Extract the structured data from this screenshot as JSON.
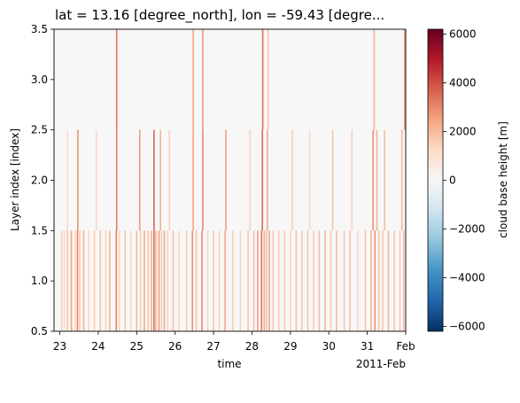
{
  "chart_data": {
    "type": "heatmap",
    "title": "lat = 13.16 [degree_north], lon = -59.43 [degre...",
    "xlabel": "time",
    "x_offset_label": "2011-Feb",
    "ylabel": "Layer index [index]",
    "colorbar_label": "cloud base height [m]",
    "colormap": "RdBu_r",
    "clim": [
      -6200,
      6200
    ],
    "xlim": [
      22.85,
      32.0
    ],
    "ylim": [
      0.5,
      3.5
    ],
    "x_ticks": [
      {
        "value": 23,
        "label": "23"
      },
      {
        "value": 24,
        "label": "24"
      },
      {
        "value": 25,
        "label": "25"
      },
      {
        "value": 26,
        "label": "26"
      },
      {
        "value": 27,
        "label": "27"
      },
      {
        "value": 28,
        "label": "28"
      },
      {
        "value": 29,
        "label": "29"
      },
      {
        "value": 30,
        "label": "30"
      },
      {
        "value": 31,
        "label": "31"
      },
      {
        "value": 32,
        "label": "Feb"
      }
    ],
    "y_ticks": [
      "0.5",
      "1.0",
      "1.5",
      "2.0",
      "2.5",
      "3.0",
      "3.5"
    ],
    "colorbar_ticks": [
      "6000",
      "4000",
      "2000",
      "0",
      "−2000",
      "−4000",
      "−6000"
    ],
    "colorbar_tick_values": [
      6000,
      4000,
      2000,
      0,
      -2000,
      -4000,
      -6000
    ],
    "layers": [
      {
        "layer": 1,
        "y_range": [
          0.5,
          1.5
        ],
        "background_value": 0,
        "cells": [
          {
            "t": 23.05,
            "v": 1500
          },
          {
            "t": 23.12,
            "v": 1200
          },
          {
            "t": 23.2,
            "v": 1800
          },
          {
            "t": 23.3,
            "v": 2500
          },
          {
            "t": 23.4,
            "v": 1400
          },
          {
            "t": 23.46,
            "v": 3000
          },
          {
            "t": 23.52,
            "v": 1700
          },
          {
            "t": 23.62,
            "v": 2200
          },
          {
            "t": 23.75,
            "v": 1300
          },
          {
            "t": 23.9,
            "v": 1600
          },
          {
            "t": 24.05,
            "v": 1900
          },
          {
            "t": 24.2,
            "v": 1400
          },
          {
            "t": 24.3,
            "v": 2100
          },
          {
            "t": 24.47,
            "v": 3200
          },
          {
            "t": 24.55,
            "v": 1500
          },
          {
            "t": 24.7,
            "v": 1800
          },
          {
            "t": 24.85,
            "v": 1300
          },
          {
            "t": 25.0,
            "v": 2000
          },
          {
            "t": 25.1,
            "v": 1600
          },
          {
            "t": 25.2,
            "v": 2400
          },
          {
            "t": 25.3,
            "v": 1800
          },
          {
            "t": 25.38,
            "v": 2200
          },
          {
            "t": 25.45,
            "v": 3500
          },
          {
            "t": 25.5,
            "v": 2000
          },
          {
            "t": 25.58,
            "v": 2600
          },
          {
            "t": 25.65,
            "v": 1700
          },
          {
            "t": 25.72,
            "v": 2300
          },
          {
            "t": 25.8,
            "v": 1500
          },
          {
            "t": 25.95,
            "v": 1900
          },
          {
            "t": 26.1,
            "v": 1400
          },
          {
            "t": 26.3,
            "v": 1600
          },
          {
            "t": 26.45,
            "v": 2800
          },
          {
            "t": 26.55,
            "v": 1800
          },
          {
            "t": 26.7,
            "v": 3000
          },
          {
            "t": 26.85,
            "v": 1500
          },
          {
            "t": 27.0,
            "v": 1700
          },
          {
            "t": 27.15,
            "v": 1400
          },
          {
            "t": 27.3,
            "v": 2400
          },
          {
            "t": 27.5,
            "v": 1600
          },
          {
            "t": 27.7,
            "v": 1500
          },
          {
            "t": 27.9,
            "v": 1800
          },
          {
            "t": 28.05,
            "v": 2000
          },
          {
            "t": 28.15,
            "v": 2600
          },
          {
            "t": 28.25,
            "v": 3400
          },
          {
            "t": 28.32,
            "v": 2200
          },
          {
            "t": 28.38,
            "v": 1900
          },
          {
            "t": 28.45,
            "v": 2500
          },
          {
            "t": 28.55,
            "v": 1800
          },
          {
            "t": 28.7,
            "v": 1500
          },
          {
            "t": 28.85,
            "v": 1700
          },
          {
            "t": 29.0,
            "v": 1400
          },
          {
            "t": 29.15,
            "v": 1900
          },
          {
            "t": 29.3,
            "v": 1600
          },
          {
            "t": 29.45,
            "v": 1800
          },
          {
            "t": 29.6,
            "v": 1500
          },
          {
            "t": 29.75,
            "v": 1900
          },
          {
            "t": 29.9,
            "v": 2100
          },
          {
            "t": 30.05,
            "v": 1600
          },
          {
            "t": 30.2,
            "v": 2000
          },
          {
            "t": 30.4,
            "v": 1700
          },
          {
            "t": 30.55,
            "v": 1900
          },
          {
            "t": 30.75,
            "v": 1400
          },
          {
            "t": 30.95,
            "v": 1800
          },
          {
            "t": 31.1,
            "v": 2200
          },
          {
            "t": 31.2,
            "v": 2800
          },
          {
            "t": 31.3,
            "v": 1900
          },
          {
            "t": 31.4,
            "v": 1700
          },
          {
            "t": 31.55,
            "v": 2000
          },
          {
            "t": 31.7,
            "v": 1800
          },
          {
            "t": 31.85,
            "v": 1600
          },
          {
            "t": 31.95,
            "v": 2000
          }
        ]
      },
      {
        "layer": 2,
        "y_range": [
          1.5,
          2.5
        ],
        "background_value": 0,
        "cells": [
          {
            "t": 23.2,
            "v": 1200
          },
          {
            "t": 23.47,
            "v": 2800
          },
          {
            "t": 23.95,
            "v": 1300
          },
          {
            "t": 24.48,
            "v": 3200
          },
          {
            "t": 25.08,
            "v": 2600
          },
          {
            "t": 25.45,
            "v": 3600
          },
          {
            "t": 25.62,
            "v": 2200
          },
          {
            "t": 25.85,
            "v": 1400
          },
          {
            "t": 26.47,
            "v": 2500
          },
          {
            "t": 26.72,
            "v": 3000
          },
          {
            "t": 27.32,
            "v": 2600
          },
          {
            "t": 27.95,
            "v": 1500
          },
          {
            "t": 28.27,
            "v": 3500
          },
          {
            "t": 28.4,
            "v": 2400
          },
          {
            "t": 29.05,
            "v": 1600
          },
          {
            "t": 29.5,
            "v": 1300
          },
          {
            "t": 30.1,
            "v": 1800
          },
          {
            "t": 30.6,
            "v": 1500
          },
          {
            "t": 31.15,
            "v": 2800
          },
          {
            "t": 31.25,
            "v": 2200
          },
          {
            "t": 31.45,
            "v": 1900
          },
          {
            "t": 31.9,
            "v": 2100
          }
        ]
      },
      {
        "layer": 3,
        "y_range": [
          2.5,
          3.5
        ],
        "background_value": 0,
        "cells": [
          {
            "t": 24.48,
            "v": 3300
          },
          {
            "t": 26.47,
            "v": 2400
          },
          {
            "t": 26.72,
            "v": 2700
          },
          {
            "t": 28.28,
            "v": 3400
          },
          {
            "t": 28.42,
            "v": 1800
          },
          {
            "t": 31.18,
            "v": 2200
          },
          {
            "t": 31.97,
            "v": 2600
          }
        ]
      }
    ]
  }
}
